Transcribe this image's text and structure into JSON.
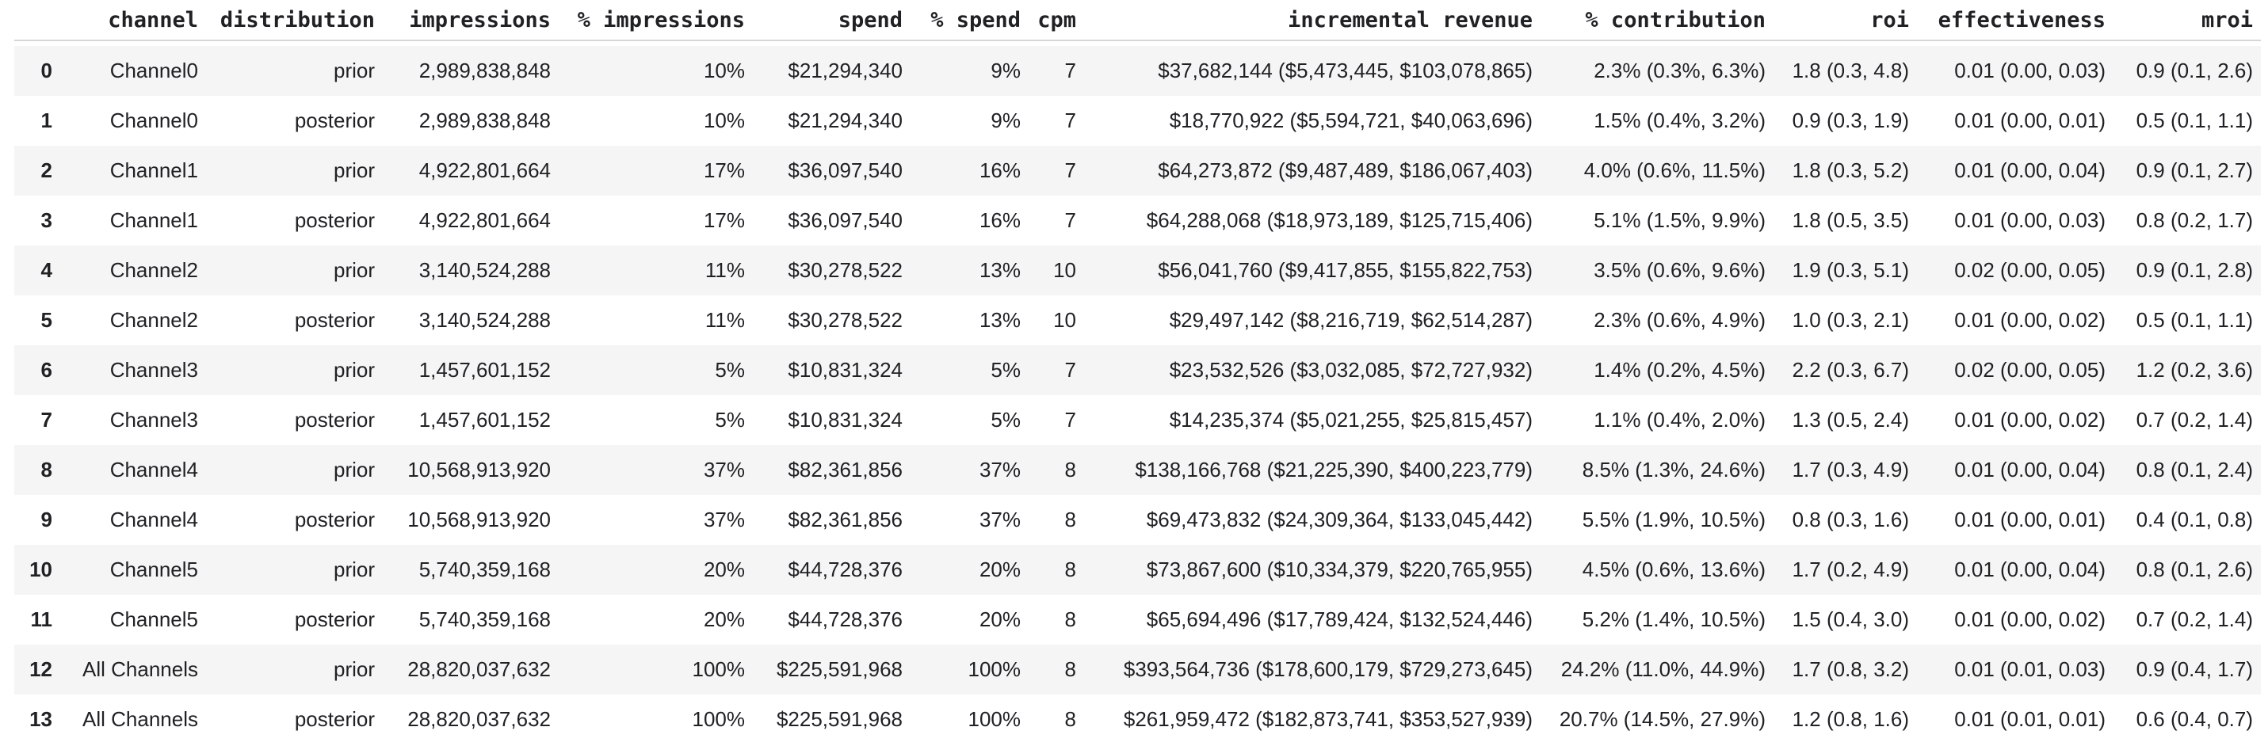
{
  "chart_data": {
    "type": "table",
    "title": "",
    "columns": [
      "",
      "channel",
      "distribution",
      "impressions",
      "% impressions",
      "spend",
      "% spend",
      "cpm",
      "incremental revenue",
      "% contribution",
      "roi",
      "effectiveness",
      "mroi"
    ],
    "rows": [
      [
        "0",
        "Channel0",
        "prior",
        "2,989,838,848",
        "10%",
        "$21,294,340",
        "9%",
        "7",
        "$37,682,144 ($5,473,445, $103,078,865)",
        "2.3% (0.3%, 6.3%)",
        "1.8 (0.3, 4.8)",
        "0.01 (0.00, 0.03)",
        "0.9 (0.1, 2.6)"
      ],
      [
        "1",
        "Channel0",
        "posterior",
        "2,989,838,848",
        "10%",
        "$21,294,340",
        "9%",
        "7",
        "$18,770,922 ($5,594,721, $40,063,696)",
        "1.5% (0.4%, 3.2%)",
        "0.9 (0.3, 1.9)",
        "0.01 (0.00, 0.01)",
        "0.5 (0.1, 1.1)"
      ],
      [
        "2",
        "Channel1",
        "prior",
        "4,922,801,664",
        "17%",
        "$36,097,540",
        "16%",
        "7",
        "$64,273,872 ($9,487,489, $186,067,403)",
        "4.0% (0.6%, 11.5%)",
        "1.8 (0.3, 5.2)",
        "0.01 (0.00, 0.04)",
        "0.9 (0.1, 2.7)"
      ],
      [
        "3",
        "Channel1",
        "posterior",
        "4,922,801,664",
        "17%",
        "$36,097,540",
        "16%",
        "7",
        "$64,288,068 ($18,973,189, $125,715,406)",
        "5.1% (1.5%, 9.9%)",
        "1.8 (0.5, 3.5)",
        "0.01 (0.00, 0.03)",
        "0.8 (0.2, 1.7)"
      ],
      [
        "4",
        "Channel2",
        "prior",
        "3,140,524,288",
        "11%",
        "$30,278,522",
        "13%",
        "10",
        "$56,041,760 ($9,417,855, $155,822,753)",
        "3.5% (0.6%, 9.6%)",
        "1.9 (0.3, 5.1)",
        "0.02 (0.00, 0.05)",
        "0.9 (0.1, 2.8)"
      ],
      [
        "5",
        "Channel2",
        "posterior",
        "3,140,524,288",
        "11%",
        "$30,278,522",
        "13%",
        "10",
        "$29,497,142 ($8,216,719, $62,514,287)",
        "2.3% (0.6%, 4.9%)",
        "1.0 (0.3, 2.1)",
        "0.01 (0.00, 0.02)",
        "0.5 (0.1, 1.1)"
      ],
      [
        "6",
        "Channel3",
        "prior",
        "1,457,601,152",
        "5%",
        "$10,831,324",
        "5%",
        "7",
        "$23,532,526 ($3,032,085, $72,727,932)",
        "1.4% (0.2%, 4.5%)",
        "2.2 (0.3, 6.7)",
        "0.02 (0.00, 0.05)",
        "1.2 (0.2, 3.6)"
      ],
      [
        "7",
        "Channel3",
        "posterior",
        "1,457,601,152",
        "5%",
        "$10,831,324",
        "5%",
        "7",
        "$14,235,374 ($5,021,255, $25,815,457)",
        "1.1% (0.4%, 2.0%)",
        "1.3 (0.5, 2.4)",
        "0.01 (0.00, 0.02)",
        "0.7 (0.2, 1.4)"
      ],
      [
        "8",
        "Channel4",
        "prior",
        "10,568,913,920",
        "37%",
        "$82,361,856",
        "37%",
        "8",
        "$138,166,768 ($21,225,390, $400,223,779)",
        "8.5% (1.3%, 24.6%)",
        "1.7 (0.3, 4.9)",
        "0.01 (0.00, 0.04)",
        "0.8 (0.1, 2.4)"
      ],
      [
        "9",
        "Channel4",
        "posterior",
        "10,568,913,920",
        "37%",
        "$82,361,856",
        "37%",
        "8",
        "$69,473,832 ($24,309,364, $133,045,442)",
        "5.5% (1.9%, 10.5%)",
        "0.8 (0.3, 1.6)",
        "0.01 (0.00, 0.01)",
        "0.4 (0.1, 0.8)"
      ],
      [
        "10",
        "Channel5",
        "prior",
        "5,740,359,168",
        "20%",
        "$44,728,376",
        "20%",
        "8",
        "$73,867,600 ($10,334,379, $220,765,955)",
        "4.5% (0.6%, 13.6%)",
        "1.7 (0.2, 4.9)",
        "0.01 (0.00, 0.04)",
        "0.8 (0.1, 2.6)"
      ],
      [
        "11",
        "Channel5",
        "posterior",
        "5,740,359,168",
        "20%",
        "$44,728,376",
        "20%",
        "8",
        "$65,694,496 ($17,789,424, $132,524,446)",
        "5.2% (1.4%, 10.5%)",
        "1.5 (0.4, 3.0)",
        "0.01 (0.00, 0.02)",
        "0.7 (0.2, 1.4)"
      ],
      [
        "12",
        "All Channels",
        "prior",
        "28,820,037,632",
        "100%",
        "$225,591,968",
        "100%",
        "8",
        "$393,564,736 ($178,600,179, $729,273,645)",
        "24.2% (11.0%, 44.9%)",
        "1.7 (0.8, 3.2)",
        "0.01 (0.01, 0.03)",
        "0.9 (0.4, 1.7)"
      ],
      [
        "13",
        "All Channels",
        "posterior",
        "28,820,037,632",
        "100%",
        "$225,591,968",
        "100%",
        "8",
        "$261,959,472 ($182,873,741, $353,527,939)",
        "20.7% (14.5%, 27.9%)",
        "1.2 (0.8, 1.6)",
        "0.01 (0.01, 0.01)",
        "0.6 (0.4, 0.7)"
      ]
    ],
    "layout": {
      "striped_rows": "even indices shaded",
      "alignment": "all columns right-aligned",
      "grid": false
    }
  },
  "colors": {
    "background": "#ffffff",
    "row_stripe": "#f5f5f5",
    "header_border": "#d6d6d6",
    "text": "#202124"
  }
}
